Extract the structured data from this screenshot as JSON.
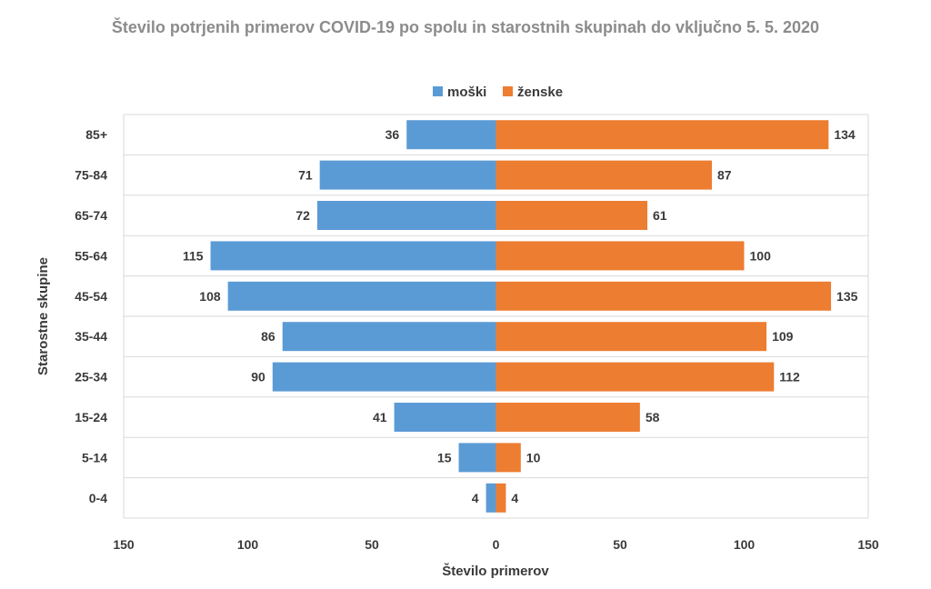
{
  "chart_data": {
    "type": "bar",
    "orientation": "horizontal",
    "title": "Število potrjenih primerov COVID-19 po spolu in starostnih skupinah do vključno 5. 5. 2020",
    "xlabel": "Število primerov",
    "ylabel": "Starostne skupine",
    "categories": [
      "85+",
      "75-84",
      "65-74",
      "55-64",
      "45-54",
      "35-44",
      "25-34",
      "15-24",
      "5-14",
      "0-4"
    ],
    "series": [
      {
        "name": "moški",
        "color": "#5b9bd5",
        "values": [
          36,
          71,
          72,
          115,
          108,
          86,
          90,
          41,
          15,
          4
        ]
      },
      {
        "name": "ženske",
        "color": "#ed7d31",
        "values": [
          134,
          87,
          61,
          100,
          135,
          109,
          112,
          58,
          10,
          4
        ]
      }
    ],
    "xlim": [
      -150,
      150
    ],
    "x_tick_labels": [
      "150",
      "100",
      "50",
      "0",
      "50",
      "100",
      "150"
    ],
    "grid": true,
    "legend_position": "top"
  }
}
